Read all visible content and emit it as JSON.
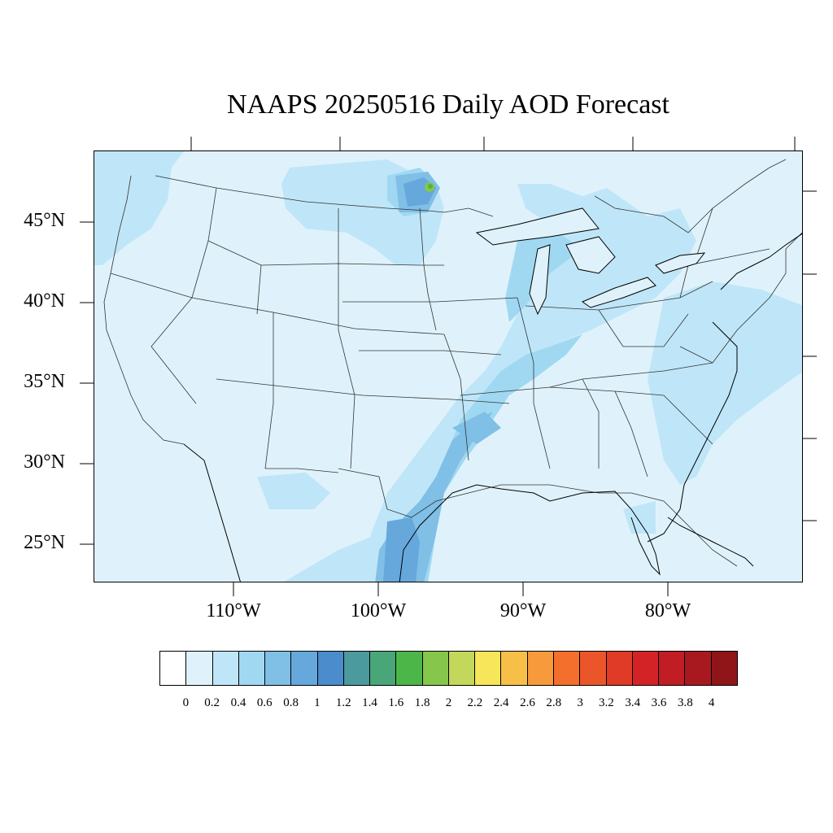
{
  "title": "NAAPS 20250516 Daily AOD Forecast",
  "map": {
    "lat_labels": [
      "45°N",
      "40°N",
      "35°N",
      "30°N",
      "25°N"
    ],
    "lon_labels": [
      "110°W",
      "100°W",
      "90°W",
      "80°W"
    ]
  },
  "colorbar": {
    "colors": [
      "#ffffff",
      "#dff2fb",
      "#bfe6f8",
      "#a0d8f2",
      "#80bfe6",
      "#66a8dc",
      "#4a8ccc",
      "#4a9a9e",
      "#49a679",
      "#4cb649",
      "#86c64b",
      "#c3d85a",
      "#f7e55a",
      "#f8bf48",
      "#f79a3b",
      "#f56f2c",
      "#ea5629",
      "#e03b26",
      "#d42327",
      "#c01d24",
      "#a8191f",
      "#8f1519"
    ],
    "labels": [
      "0",
      "0.2",
      "0.4",
      "0.6",
      "0.8",
      "1",
      "1.2",
      "1.4",
      "1.6",
      "1.8",
      "2",
      "2.2",
      "2.4",
      "2.6",
      "2.8",
      "3",
      "3.2",
      "3.4",
      "3.6",
      "3.8",
      "4"
    ]
  }
}
